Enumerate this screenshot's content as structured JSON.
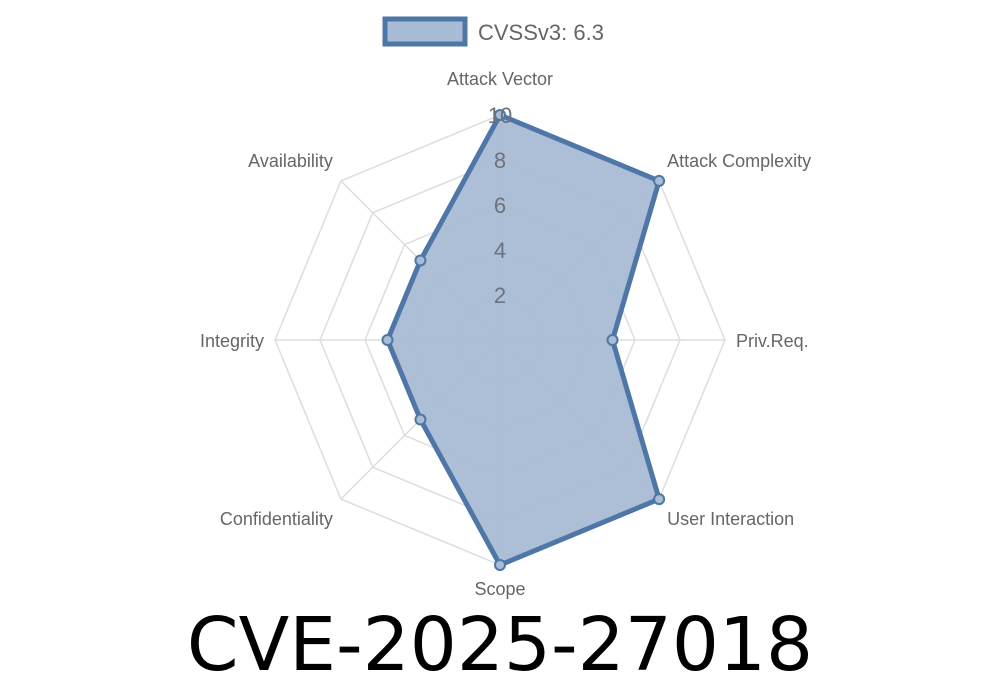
{
  "chart_data": {
    "type": "radar",
    "title": "CVE-2025-27018",
    "axes": [
      "Attack Vector",
      "Attack Complexity",
      "Priv.Req.",
      "User Interaction",
      "Scope",
      "Confidentiality",
      "Integrity",
      "Availability"
    ],
    "series": [
      {
        "name": "CVSSv3: 6.3",
        "values": [
          10,
          10,
          5,
          10,
          10,
          5,
          5,
          5
        ]
      }
    ],
    "ticks": [
      "2",
      "4",
      "6",
      "8",
      "10"
    ],
    "rlim": [
      0,
      10
    ],
    "grid": true,
    "legend": "top",
    "colors": {
      "line": "#4e76a6",
      "fill": "#a9bcd5",
      "grid": "#dddddd",
      "text": "#666666"
    }
  }
}
